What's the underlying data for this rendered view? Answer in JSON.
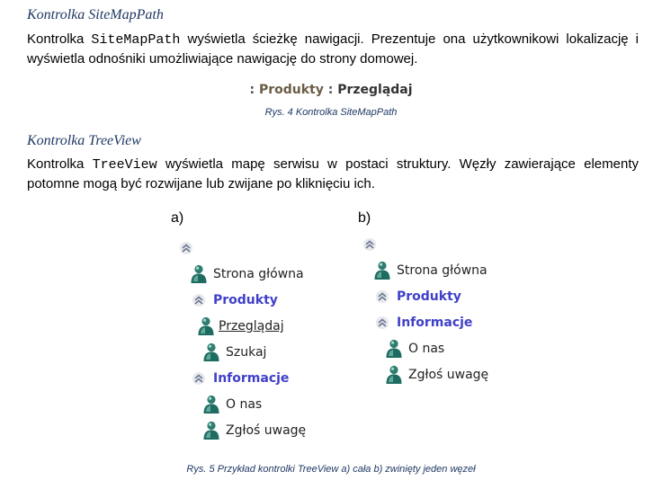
{
  "sitemap_section": {
    "heading": "Kontrolka SiteMapPath",
    "para_line1_prefix": "Kontrolka ",
    "para_line1_code": "SiteMapPath",
    "para_line1_rest": " wyświetla ścieżkę nawigacji. Prezentuje ona użytkownikowi lokalizację i",
    "para_line2": "wyświetla odnośniki umożliwiające nawigację do strony domowej.",
    "path": {
      "separator": " : ",
      "parent": "Produkty",
      "current": "Przeglądaj"
    },
    "caption": "Rys. 4 Kontrolka SiteMapPath"
  },
  "treeview_section": {
    "heading": "Kontrolka TreeView",
    "para_line1_prefix": "Kontrolka ",
    "para_line1_code": "TreeView",
    "para_line1_rest": " wyświetla mapę serwisu w postaci struktury. Węzły zawierające elementy",
    "para_line2": "potomne mogą być rozwijane lub zwijane po kliknięciu ich.",
    "panel_a": {
      "label": "a)",
      "nodes": [
        "Strona główna",
        "Produkty",
        "Przeglądaj",
        "Szukaj",
        "Informacje",
        "O nas",
        "Zgłoś uwagę"
      ]
    },
    "panel_b": {
      "label": "b)",
      "nodes": [
        "Strona główna",
        "Produkty",
        "Informacje",
        "O nas",
        "Zgłoś uwagę"
      ]
    },
    "caption": "Rys. 5 Przykład kontrolki TreeView a) cała b) zwinięty jeden węzeł"
  },
  "icons": {
    "collapse": "collapse-chevron-icon",
    "user": "user-icon"
  },
  "colors": {
    "heading": "#1f3864",
    "group_node": "#4040c8",
    "user_icon": "#1e6b62"
  }
}
